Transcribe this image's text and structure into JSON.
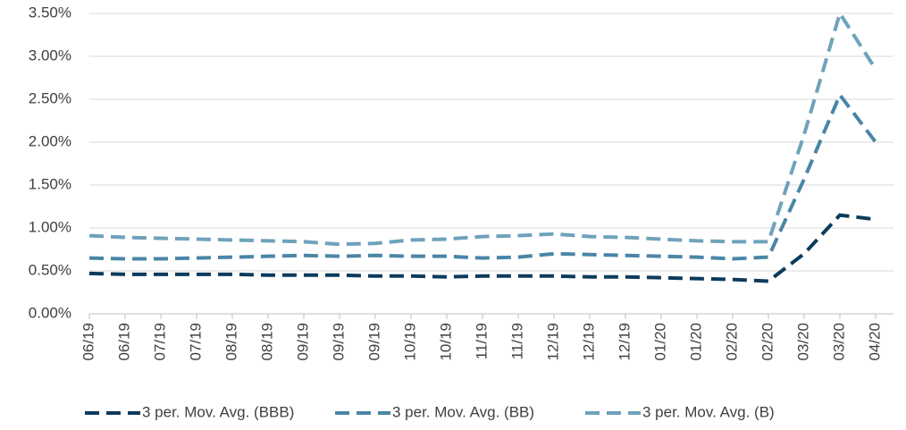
{
  "chart_data": {
    "type": "line",
    "categories": [
      "06/19",
      "06/19",
      "07/19",
      "07/19",
      "08/19",
      "08/19",
      "09/19",
      "09/19",
      "09/19",
      "10/19",
      "10/19",
      "11/19",
      "11/19",
      "12/19",
      "12/19",
      "12/19",
      "01/20",
      "01/20",
      "02/20",
      "02/20",
      "03/20",
      "03/20",
      "04/20"
    ],
    "series": [
      {
        "name": "3 per. Mov. Avg. (BBB)",
        "color": "#0d3b5c",
        "values": [
          0.47,
          0.46,
          0.46,
          0.46,
          0.46,
          0.45,
          0.45,
          0.45,
          0.44,
          0.44,
          0.43,
          0.44,
          0.44,
          0.44,
          0.43,
          0.43,
          0.42,
          0.41,
          0.4,
          0.38,
          0.7,
          1.15,
          1.1
        ]
      },
      {
        "name": "3 per. Mov. Avg. (BB)",
        "color": "#4a86a6",
        "values": [
          0.65,
          0.64,
          0.64,
          0.65,
          0.66,
          0.67,
          0.68,
          0.67,
          0.68,
          0.67,
          0.67,
          0.65,
          0.66,
          0.7,
          0.69,
          0.68,
          0.67,
          0.66,
          0.64,
          0.66,
          1.57,
          2.55,
          2.0
        ]
      },
      {
        "name": "3 per. Mov. Avg. (B)",
        "color": "#6ea2bb",
        "values": [
          0.91,
          0.89,
          0.88,
          0.87,
          0.86,
          0.85,
          0.84,
          0.81,
          0.82,
          0.86,
          0.87,
          0.9,
          0.91,
          0.93,
          0.9,
          0.89,
          0.87,
          0.85,
          0.84,
          0.84,
          2.09,
          3.5,
          2.85
        ]
      }
    ],
    "ylim": [
      0,
      3.5
    ],
    "yticks": [
      {
        "value": 0,
        "label": "0.00%"
      },
      {
        "value": 0.5,
        "label": "0.50%"
      },
      {
        "value": 1,
        "label": "1.00%"
      },
      {
        "value": 1.5,
        "label": "1.50%"
      },
      {
        "value": 2,
        "label": "2.00%"
      },
      {
        "value": 2.5,
        "label": "2.50%"
      },
      {
        "value": 3,
        "label": "3.00%"
      },
      {
        "value": 3.5,
        "label": "3.50%"
      }
    ],
    "grid": true,
    "legend": "bottom"
  }
}
